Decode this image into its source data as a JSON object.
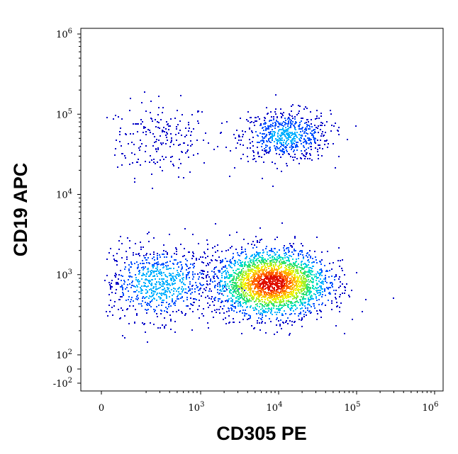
{
  "chart_data": {
    "type": "scatter",
    "subtype": "flow-cytometry density dot plot",
    "xlabel": "CD305 PE",
    "ylabel": "CD19 APC",
    "x_scale": "biexponential",
    "y_scale": "biexponential",
    "xlim": [
      -300,
      1000000
    ],
    "ylim": [
      -150,
      1000000
    ],
    "x_ticks": [
      {
        "value": 0,
        "base": "0",
        "exp": ""
      },
      {
        "value": 1000,
        "base": "10",
        "exp": "3"
      },
      {
        "value": 10000,
        "base": "10",
        "exp": "4"
      },
      {
        "value": 100000,
        "base": "10",
        "exp": "5"
      },
      {
        "value": 1000000,
        "base": "10",
        "exp": "6"
      }
    ],
    "y_ticks": [
      {
        "value": -100,
        "base": "-10",
        "exp": "2"
      },
      {
        "value": 0,
        "base": "0",
        "exp": ""
      },
      {
        "value": 100,
        "base": "10",
        "exp": "2"
      },
      {
        "value": 1000,
        "base": "10",
        "exp": "3"
      },
      {
        "value": 10000,
        "base": "10",
        "exp": "4"
      },
      {
        "value": 100000,
        "base": "10",
        "exp": "5"
      },
      {
        "value": 1000000,
        "base": "10",
        "exp": "6"
      }
    ],
    "grid": false,
    "legend": "none",
    "colormap": [
      "#0000c8",
      "#0050ff",
      "#00b0ff",
      "#00e0c0",
      "#30e070",
      "#a0f030",
      "#f0f000",
      "#ffb000",
      "#ff6000",
      "#e01000"
    ],
    "populations": [
      {
        "name_hint": "CD19+ CD305 low",
        "x_center": 300,
        "y_center": 50000,
        "x_spread_log": 0.25,
        "y_spread_log": 0.18,
        "density": 0.08
      },
      {
        "name_hint": "CD19+ CD305 high",
        "x_center": 12000,
        "y_center": 55000,
        "x_spread_log": 0.22,
        "y_spread_log": 0.12,
        "density": 0.25
      },
      {
        "name_hint": "CD19- CD305 low",
        "x_center": 300,
        "y_center": 800,
        "x_spread_log": 0.28,
        "y_spread_log": 0.18,
        "density": 0.3
      },
      {
        "name_hint": "CD19- CD305 high",
        "x_center": 8000,
        "y_center": 800,
        "x_spread_log": 0.28,
        "y_spread_log": 0.16,
        "density": 1.0
      }
    ]
  }
}
